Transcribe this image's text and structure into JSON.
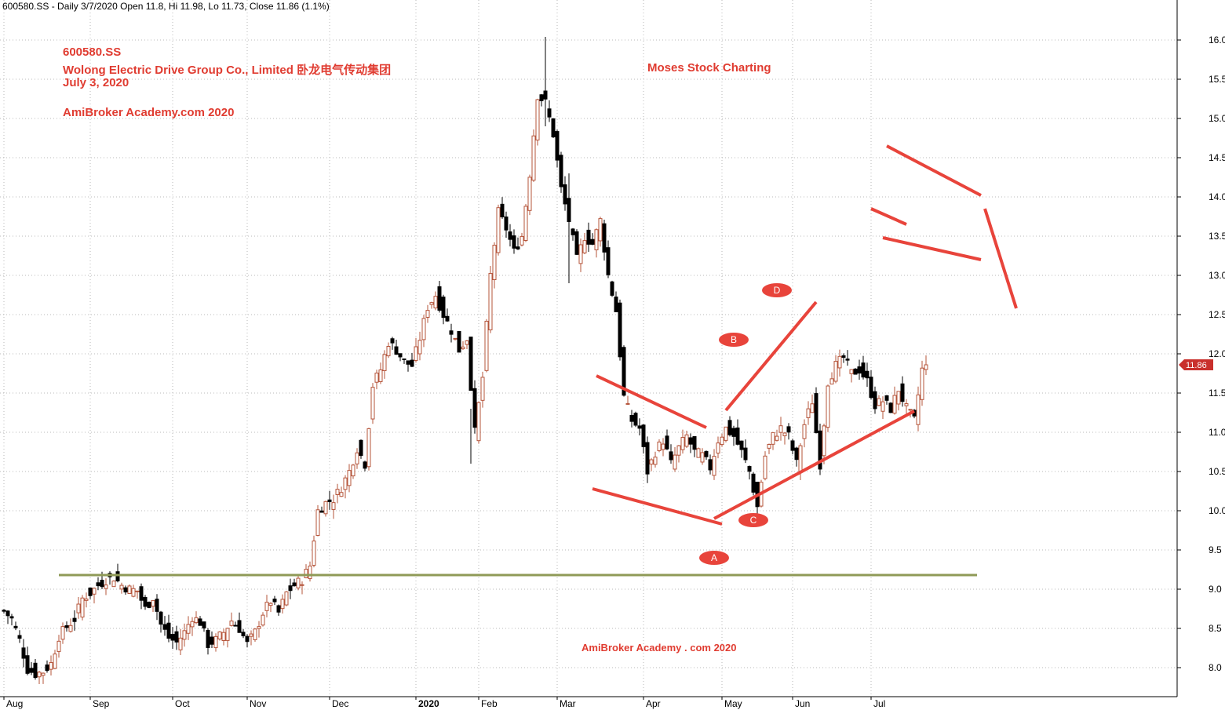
{
  "header": {
    "text": "600580.SS - Daily 3/7/2020 Open 11.8, Hi 11.98, Lo 11.73, Close 11.86 (1.1%)"
  },
  "annotations": {
    "ticker": "600580.SS",
    "company": "Wolong Electric Drive Group Co., Limited 卧龙电气传动集团",
    "date": "July 3, 2020",
    "site": "AmiBroker Academy.com  2020",
    "brand": "Moses Stock Charting",
    "footer": "AmiBroker Academy . com  2020"
  },
  "colors": {
    "up_candle": "#b5543a",
    "down_candle": "#000000",
    "drawing": "#e8443b",
    "support_line": "#8f9a57",
    "grid": "#b8b8b8",
    "last_price_bg": "#c9302c"
  },
  "chart_data": {
    "type": "candlestick",
    "ylim": [
      7.6,
      16.3
    ],
    "yticks": [
      8.0,
      8.5,
      9.0,
      9.5,
      10.0,
      10.5,
      11.0,
      11.5,
      12.0,
      12.5,
      13.0,
      13.5,
      14.0,
      14.5,
      15.0,
      15.5,
      16.0
    ],
    "x_labels": [
      {
        "label": "Aug",
        "bar": 0
      },
      {
        "label": "Sep",
        "bar": 22
      },
      {
        "label": "Oct",
        "bar": 43
      },
      {
        "label": "Nov",
        "bar": 62
      },
      {
        "label": "Dec",
        "bar": 83
      },
      {
        "label": "2020",
        "bar": 105
      },
      {
        "label": "Feb",
        "bar": 121
      },
      {
        "label": "Mar",
        "bar": 141
      },
      {
        "label": "Apr",
        "bar": 163
      },
      {
        "label": "May",
        "bar": 183
      },
      {
        "label": "Jun",
        "bar": 201
      },
      {
        "label": "Jul",
        "bar": 221
      }
    ],
    "close_anchors": [
      [
        0,
        8.72
      ],
      [
        2,
        8.62
      ],
      [
        4,
        8.35
      ],
      [
        6,
        7.98
      ],
      [
        8,
        7.92
      ],
      [
        10,
        7.95
      ],
      [
        12,
        8.05
      ],
      [
        14,
        8.4
      ],
      [
        16,
        8.52
      ],
      [
        18,
        8.62
      ],
      [
        20,
        8.88
      ],
      [
        22,
        8.95
      ],
      [
        24,
        9.05
      ],
      [
        26,
        9.12
      ],
      [
        28,
        9.15
      ],
      [
        30,
        9.05
      ],
      [
        32,
        9.0
      ],
      [
        34,
        8.98
      ],
      [
        36,
        8.75
      ],
      [
        38,
        8.9
      ],
      [
        40,
        8.55
      ],
      [
        42,
        8.38
      ],
      [
        44,
        8.32
      ],
      [
        46,
        8.45
      ],
      [
        48,
        8.65
      ],
      [
        50,
        8.58
      ],
      [
        52,
        8.3
      ],
      [
        54,
        8.35
      ],
      [
        56,
        8.45
      ],
      [
        58,
        8.6
      ],
      [
        60,
        8.5
      ],
      [
        62,
        8.3
      ],
      [
        64,
        8.45
      ],
      [
        66,
        8.7
      ],
      [
        68,
        8.85
      ],
      [
        70,
        8.7
      ],
      [
        72,
        8.95
      ],
      [
        74,
        9.05
      ],
      [
        76,
        9.12
      ],
      [
        78,
        9.3
      ],
      [
        80,
        10.0
      ],
      [
        82,
        10.1
      ],
      [
        84,
        10.15
      ],
      [
        86,
        10.3
      ],
      [
        88,
        10.5
      ],
      [
        90,
        10.8
      ],
      [
        92,
        10.6
      ],
      [
        94,
        11.6
      ],
      [
        96,
        11.8
      ],
      [
        98,
        12.15
      ],
      [
        100,
        12.05
      ],
      [
        102,
        11.9
      ],
      [
        104,
        11.85
      ],
      [
        106,
        12.2
      ],
      [
        108,
        12.6
      ],
      [
        110,
        12.75
      ],
      [
        112,
        12.5
      ],
      [
        114,
        12.3
      ],
      [
        116,
        12.05
      ],
      [
        118,
        12.2
      ],
      [
        120,
        11.0
      ],
      [
        122,
        11.7
      ],
      [
        124,
        13.0
      ],
      [
        126,
        13.8
      ],
      [
        128,
        13.6
      ],
      [
        130,
        13.3
      ],
      [
        132,
        13.5
      ],
      [
        134,
        14.3
      ],
      [
        136,
        15.3
      ],
      [
        138,
        15.2
      ],
      [
        140,
        14.8
      ],
      [
        142,
        14.1
      ],
      [
        144,
        13.7
      ],
      [
        146,
        13.2
      ],
      [
        148,
        13.5
      ],
      [
        150,
        13.4
      ],
      [
        152,
        13.7
      ],
      [
        154,
        13.0
      ],
      [
        156,
        12.55
      ],
      [
        158,
        11.45
      ],
      [
        160,
        11.15
      ],
      [
        162,
        11.05
      ],
      [
        164,
        10.5
      ],
      [
        166,
        10.75
      ],
      [
        168,
        10.9
      ],
      [
        170,
        10.6
      ],
      [
        172,
        10.8
      ],
      [
        174,
        10.95
      ],
      [
        176,
        10.75
      ],
      [
        178,
        10.7
      ],
      [
        180,
        10.55
      ],
      [
        182,
        10.9
      ],
      [
        184,
        11.05
      ],
      [
        186,
        10.95
      ],
      [
        188,
        10.75
      ],
      [
        190,
        10.5
      ],
      [
        192,
        10.05
      ],
      [
        194,
        10.7
      ],
      [
        196,
        10.95
      ],
      [
        198,
        11.05
      ],
      [
        200,
        10.95
      ],
      [
        202,
        10.6
      ],
      [
        204,
        11.1
      ],
      [
        206,
        11.4
      ],
      [
        208,
        10.6
      ],
      [
        210,
        11.65
      ],
      [
        212,
        11.85
      ],
      [
        214,
        11.95
      ],
      [
        216,
        11.75
      ],
      [
        218,
        11.8
      ],
      [
        220,
        11.65
      ],
      [
        222,
        11.35
      ],
      [
        224,
        11.4
      ],
      [
        226,
        11.3
      ],
      [
        228,
        11.55
      ],
      [
        230,
        11.3
      ],
      [
        232,
        11.15
      ],
      [
        234,
        11.8
      ],
      [
        235,
        11.86
      ]
    ],
    "notable_ranges": [
      {
        "bar": 119,
        "high": 11.3,
        "low": 10.6
      },
      {
        "bar": 138,
        "high": 16.04,
        "low": 14.9
      },
      {
        "bar": 144,
        "high": 14.3,
        "low": 12.9
      },
      {
        "bar": 192,
        "high": 10.3,
        "low": 9.85
      }
    ],
    "last": {
      "open": 11.8,
      "high": 11.98,
      "low": 11.73,
      "close": 11.86,
      "label": "11.86"
    },
    "drawings": {
      "support_line": {
        "y": 9.18,
        "from_bar": 14,
        "to_bar": 248
      },
      "pattern_lines": [
        {
          "from": [
            151,
            11.72
          ],
          "to": [
            179,
            11.06
          ]
        },
        {
          "from": [
            150,
            10.28
          ],
          "to": [
            183,
            9.83
          ]
        },
        {
          "from": [
            184,
            11.28
          ],
          "to": [
            207,
            12.66
          ]
        },
        {
          "from": [
            181,
            9.9
          ],
          "to": [
            232,
            11.27
          ]
        },
        {
          "from": [
            221,
            13.85
          ],
          "to": [
            230,
            13.65
          ]
        },
        {
          "from": [
            225,
            14.65
          ],
          "to": [
            249,
            14.02
          ]
        },
        {
          "from": [
            224,
            13.48
          ],
          "to": [
            249,
            13.2
          ]
        },
        {
          "from": [
            250,
            13.85
          ],
          "to": [
            258,
            12.58
          ]
        }
      ],
      "points": [
        {
          "label": "A",
          "bar": 181,
          "y": 9.4
        },
        {
          "label": "B",
          "bar": 186,
          "y": 12.18
        },
        {
          "label": "C",
          "bar": 191,
          "y": 9.88
        },
        {
          "label": "D",
          "bar": 197,
          "y": 12.81
        }
      ]
    }
  }
}
